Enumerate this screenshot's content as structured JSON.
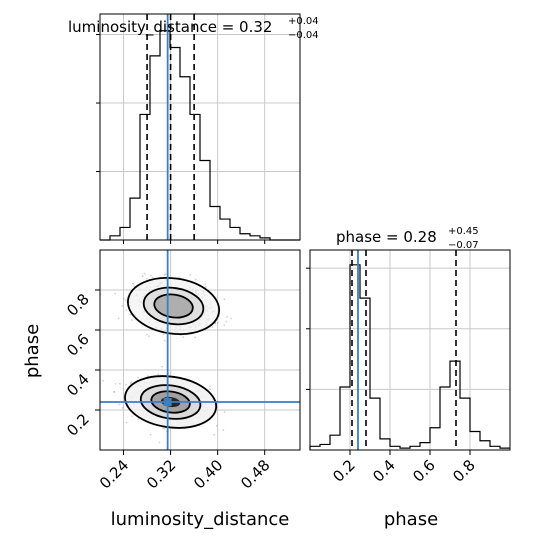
{
  "panels": {
    "top_title": {
      "pre": "luminosity_distance = 0.32",
      "sup": "+0.04",
      "sub": "−0.04"
    },
    "right_title": {
      "pre": "phase = 0.28",
      "sup": "+0.45",
      "sub": "−0.07"
    },
    "xlabel_left": "luminosity_distance",
    "xlabel_right": "phase",
    "ylabel_left": "phase"
  },
  "colors": {
    "truth": "#3a7fc1",
    "hist": "#000000",
    "grid": "#c8c8c8"
  },
  "chart_data": [
    {
      "type": "histogram",
      "parameter": "luminosity_distance",
      "xlim": [
        0.2,
        0.54
      ],
      "grid": true,
      "xticks": [
        0.24,
        0.32,
        0.4,
        0.48
      ],
      "bin_edges": [
        0.2,
        0.217,
        0.234,
        0.251,
        0.268,
        0.285,
        0.302,
        0.319,
        0.336,
        0.353,
        0.37,
        0.387,
        0.404,
        0.421,
        0.438,
        0.455,
        0.472,
        0.489,
        0.506,
        0.523,
        0.54
      ],
      "counts": [
        0,
        2,
        6,
        20,
        60,
        88,
        100,
        92,
        78,
        60,
        38,
        16,
        10,
        6,
        3,
        2,
        1,
        0,
        0,
        0
      ],
      "median": 0.32,
      "quantiles": [
        0.28,
        0.36
      ],
      "truth": 0.315
    },
    {
      "type": "histogram",
      "parameter": "phase",
      "xlim": [
        0.0,
        1.0
      ],
      "grid": true,
      "xticks": [
        0.2,
        0.4,
        0.6,
        0.8
      ],
      "xticklabels": [
        "0.2",
        "0.4",
        "0.6",
        "0.8"
      ],
      "bin_edges": [
        0.0,
        0.05,
        0.1,
        0.15,
        0.2,
        0.25,
        0.3,
        0.35,
        0.4,
        0.45,
        0.5,
        0.55,
        0.6,
        0.65,
        0.7,
        0.75,
        0.8,
        0.85,
        0.9,
        0.95,
        1.0
      ],
      "counts": [
        2,
        3,
        8,
        34,
        100,
        82,
        28,
        6,
        2,
        1,
        2,
        4,
        12,
        34,
        48,
        28,
        10,
        5,
        2,
        1
      ],
      "median": 0.28,
      "quantiles": [
        0.21,
        0.73
      ],
      "truth": 0.24
    },
    {
      "type": "contour",
      "x_parameter": "luminosity_distance",
      "y_parameter": "phase",
      "xlim": [
        0.2,
        0.54
      ],
      "ylim": [
        0.0,
        1.0
      ],
      "grid": true,
      "xticks": [
        0.24,
        0.32,
        0.4,
        0.48
      ],
      "yticks": [
        0.2,
        0.4,
        0.6,
        0.8
      ],
      "truth": [
        0.315,
        0.24
      ],
      "modes": [
        {
          "center": [
            0.32,
            0.24
          ],
          "sx": 0.03,
          "sy": 0.055,
          "weight": 0.62
        },
        {
          "center": [
            0.325,
            0.72
          ],
          "sx": 0.03,
          "sy": 0.06,
          "weight": 0.38
        }
      ]
    }
  ]
}
